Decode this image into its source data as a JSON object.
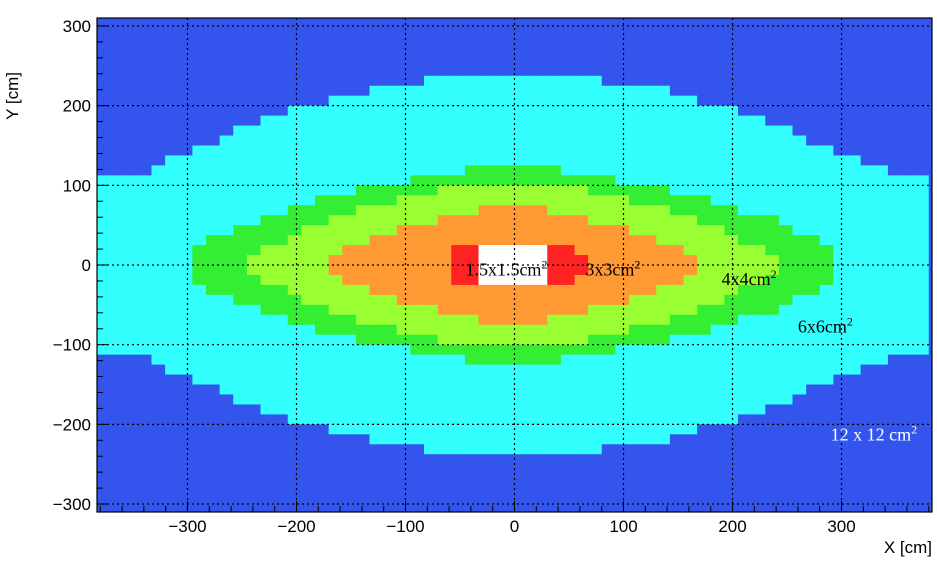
{
  "chart_data": {
    "type": "heatmap",
    "title": "",
    "xlabel": "X [cm]",
    "ylabel": "Y [cm]",
    "xlim": [
      -383,
      383
    ],
    "ylim": [
      -310,
      310
    ],
    "x_ticks": [
      -300,
      -200,
      -100,
      0,
      100,
      200,
      300
    ],
    "x_tick_labels": [
      "−300",
      "−200",
      "−100",
      "0",
      "100",
      "200",
      "300"
    ],
    "y_ticks": [
      -300,
      -200,
      -100,
      0,
      100,
      200,
      300
    ],
    "y_tick_labels": [
      "−300",
      "−200",
      "−100",
      "0",
      "100",
      "200",
      "300"
    ],
    "grid": true,
    "regions": [
      {
        "name": "12 x 12 cm²",
        "color": "#3355ee",
        "base": "12 x 12 cm",
        "sup": "2",
        "label_x": 290,
        "label_y": -220,
        "label_color": "#ffffff",
        "half_height_profile": [
          [
            0,
            310
          ],
          [
            390,
            310
          ]
        ]
      },
      {
        "name": "6x6cm²",
        "color": "#33ffff",
        "base": "6x6cm",
        "sup": "2",
        "label_x": 260,
        "label_y": -85,
        "label_color": "#000000",
        "half_height_profile": [
          [
            0,
            240
          ],
          [
            25,
            240
          ],
          [
            50,
            236
          ],
          [
            75,
            232
          ],
          [
            100,
            228
          ],
          [
            125,
            222
          ],
          [
            150,
            215
          ],
          [
            175,
            205
          ],
          [
            200,
            195
          ],
          [
            225,
            185
          ],
          [
            250,
            170
          ],
          [
            275,
            155
          ],
          [
            300,
            140
          ],
          [
            325,
            125
          ],
          [
            350,
            112
          ],
          [
            370,
            107
          ],
          [
            383,
            106
          ]
        ]
      },
      {
        "name": "4x4cm²",
        "color": "#33ee33",
        "base": "4x4cm",
        "sup": "2",
        "label_x": 190,
        "label_y": -25,
        "label_color": "#000000",
        "half_height_profile": [
          [
            0,
            125
          ],
          [
            25,
            125
          ],
          [
            50,
            117
          ],
          [
            75,
            115
          ],
          [
            100,
            105
          ],
          [
            125,
            100
          ],
          [
            150,
            92
          ],
          [
            175,
            82
          ],
          [
            200,
            72
          ],
          [
            225,
            62
          ],
          [
            250,
            50
          ],
          [
            275,
            35
          ],
          [
            288,
            25
          ],
          [
            293,
            0
          ]
        ]
      },
      {
        "name": "3x3cm²",
        "color": "#99ff33",
        "base": "3x3cm",
        "sup": "2",
        "label_x": 65,
        "label_y": -13,
        "label_color": "#000000",
        "half_height_profile": [
          [
            0,
            105
          ],
          [
            25,
            102
          ],
          [
            50,
            97
          ],
          [
            75,
            92
          ],
          [
            100,
            82
          ],
          [
            125,
            75
          ],
          [
            150,
            65
          ],
          [
            175,
            52
          ],
          [
            200,
            38
          ],
          [
            225,
            22
          ],
          [
            240,
            12
          ],
          [
            245,
            0
          ]
        ]
      },
      {
        "name": "1.5x1.5cm²",
        "color": "#ff9933",
        "base": "1.5x1.5cm",
        "sup": "2",
        "label_x": -45,
        "label_y": -13,
        "label_color": "#000000",
        "half_height_profile": [
          [
            0,
            72
          ],
          [
            25,
            70
          ],
          [
            50,
            62
          ],
          [
            75,
            55
          ],
          [
            100,
            45
          ],
          [
            125,
            35
          ],
          [
            150,
            22
          ],
          [
            165,
            10
          ],
          [
            170,
            0
          ]
        ]
      },
      {
        "name": "",
        "color": "#ff2222",
        "label_color": "#000000",
        "half_height_profile": [
          [
            0,
            28
          ],
          [
            35,
            28
          ],
          [
            50,
            22
          ],
          [
            60,
            12
          ],
          [
            65,
            0
          ]
        ]
      },
      {
        "name": "",
        "color": "#ffffff",
        "label_color": "#000000",
        "half_height_profile": [
          [
            0,
            20
          ],
          [
            30,
            20
          ],
          [
            30,
            0
          ]
        ]
      }
    ]
  }
}
